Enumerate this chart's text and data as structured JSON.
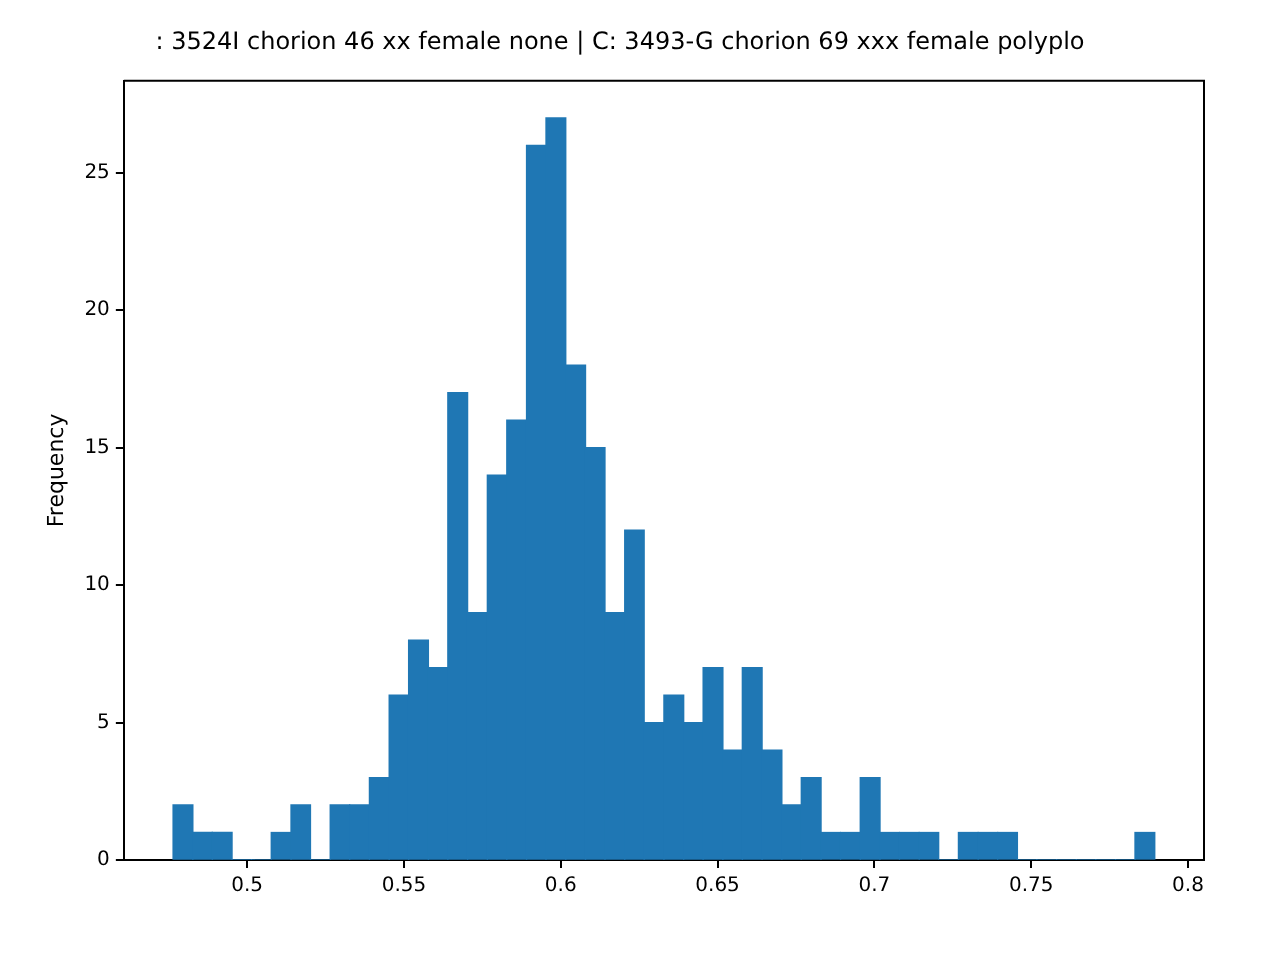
{
  "chart_data": {
    "type": "histogram",
    "title": ": 3524I chorion 46 xx female none | C: 3493-G chorion 69 xxx female polyplo",
    "ylabel": "Frequency",
    "color": "#1f77b4",
    "bins": [
      0.4764,
      0.4827,
      0.4889,
      0.4952,
      0.5014,
      0.5077,
      0.514,
      0.5202,
      0.5265,
      0.5327,
      0.539,
      0.5453,
      0.5515,
      0.5578,
      0.564,
      0.5703,
      0.5766,
      0.5828,
      0.5891,
      0.5953,
      0.6016,
      0.6079,
      0.6141,
      0.6204,
      0.6266,
      0.6329,
      0.6392,
      0.6454,
      0.6517,
      0.6579,
      0.6642,
      0.6705,
      0.6767,
      0.683,
      0.6892,
      0.6955,
      0.7018,
      0.708,
      0.7143,
      0.7205,
      0.7268,
      0.7331,
      0.7393,
      0.7456,
      0.7518,
      0.7581,
      0.7644,
      0.7706,
      0.7769,
      0.7831,
      0.7894
    ],
    "values": [
      2,
      1,
      1,
      0,
      0,
      1,
      2,
      0,
      2,
      2,
      3,
      6,
      8,
      7,
      17,
      9,
      14,
      16,
      26,
      27,
      18,
      15,
      9,
      12,
      5,
      6,
      5,
      7,
      4,
      7,
      4,
      2,
      3,
      1,
      1,
      3,
      1,
      1,
      1,
      0,
      1,
      1,
      1,
      0,
      0,
      0,
      0,
      0,
      0,
      1
    ],
    "xlim": [
      0.4607,
      0.8051
    ],
    "xticks": [
      0.5,
      0.55,
      0.6,
      0.65,
      0.7,
      0.75,
      0.8
    ],
    "ylim": [
      0,
      28.35
    ],
    "yticks": [
      0,
      5,
      10,
      15,
      20,
      25
    ],
    "grid": false,
    "legend": false
  }
}
